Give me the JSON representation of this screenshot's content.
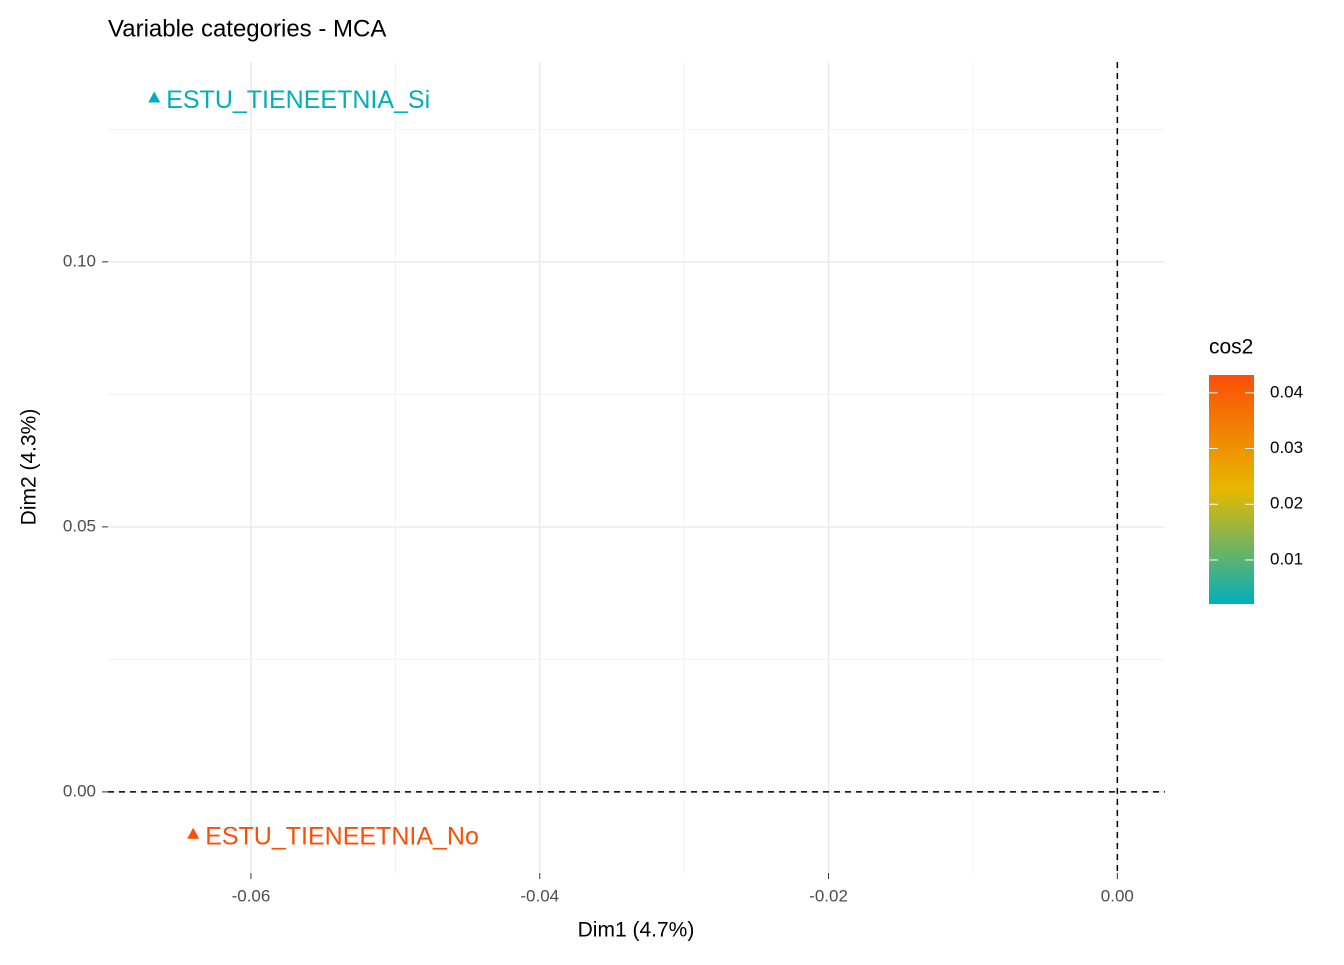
{
  "chart_data": {
    "type": "scatter",
    "title": "Variable categories - MCA",
    "x_label": "Dim1 (4.7%)",
    "y_label": "Dim2 (4.3%)",
    "points": [
      {
        "label": "ESTU_TIENEETNIA_Si",
        "x": -0.0667,
        "y": 0.131,
        "cos2": 0.0021
      },
      {
        "label": "ESTU_TIENEETNIA_No",
        "x": -0.064,
        "y": -0.0079,
        "cos2": 0.0432
      }
    ],
    "marker": "triangle",
    "xlim": [
      -0.0699,
      0.0033
    ],
    "xticks": [
      {
        "value": -0.06,
        "label": "-0.06"
      },
      {
        "value": -0.04,
        "label": "-0.04"
      },
      {
        "value": -0.02,
        "label": "-0.02"
      },
      {
        "value": 0,
        "label": "0.00"
      }
    ],
    "ylim": [
      -0.0153,
      0.1377
    ],
    "yticks": [
      {
        "value": 0,
        "label": "0.00"
      },
      {
        "value": 0.05,
        "label": "0.05"
      },
      {
        "value": 0.1,
        "label": "0.10"
      }
    ],
    "grid": true,
    "color_scale": {
      "title": "cos2",
      "colors": [
        "#00AFBB",
        "#E7B800",
        "#FC4E07"
      ],
      "lim": [
        0.0021,
        0.0432
      ],
      "ticks": [
        0.01,
        0.02,
        0.03,
        0.04
      ]
    }
  }
}
